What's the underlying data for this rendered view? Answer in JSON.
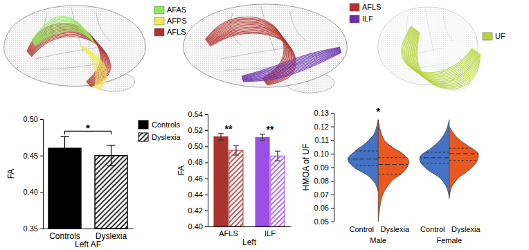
{
  "brain_panels": [
    {
      "tracts": [
        {
          "name": "AFAS",
          "color": "#8fe85f"
        },
        {
          "name": "AFPS",
          "color": "#f0ec55"
        },
        {
          "name": "AFLS",
          "color": "#b5322c"
        }
      ]
    },
    {
      "tracts": [
        {
          "name": "AFLS",
          "color": "#b5322c"
        },
        {
          "name": "ILF",
          "color": "#6a2fb0"
        }
      ]
    },
    {
      "tracts": [
        {
          "name": "UF",
          "color": "#b5d334"
        }
      ]
    }
  ],
  "chart_data": [
    {
      "type": "bar",
      "x_label": "Left AF",
      "y_label": "FA",
      "categories": [
        "Controls",
        "Dyslexia"
      ],
      "series": [
        {
          "name": "Controls",
          "color": "#000000",
          "values": [
            0.46,
            null
          ],
          "errors": [
            0.016,
            null
          ]
        },
        {
          "name": "Dyslexia",
          "color": "#000000",
          "values": [
            null,
            0.45
          ],
          "errors": [
            null,
            0.014
          ]
        }
      ],
      "ylim": [
        0.35,
        0.5
      ],
      "yticks": [
        0.35,
        {
          "value": 0.4,
          "label": "0.40"
        },
        0.45,
        {
          "value": 0.5,
          "label": "0.50"
        }
      ],
      "legend": "upper right",
      "annotations": [
        {
          "text": "*",
          "categories": [
            "Controls",
            "Dyslexia"
          ]
        }
      ]
    },
    {
      "type": "bar",
      "x_label": "Left",
      "y_label": "FA",
      "categories": [
        "AFLS",
        "ILF"
      ],
      "colors": [
        "#a8332f",
        "#9b4fe6"
      ],
      "series": [
        {
          "values": [
            0.512,
            0.511
          ],
          "errors": [
            0.004,
            0.004
          ]
        },
        {
          "values": [
            0.495,
            0.488
          ],
          "errors": [
            0.006,
            0.006
          ]
        }
      ],
      "ylim": [
        0.4,
        0.54
      ],
      "yticks": [
        {
          "value": 0.4,
          "label": "0.40"
        },
        0.42,
        0.44,
        0.46,
        0.48,
        {
          "value": 0.5,
          "label": "0.50"
        },
        0.52,
        0.54
      ],
      "annotations": [
        {
          "text": "**",
          "category": "AFLS"
        },
        {
          "text": "**",
          "category": "ILF"
        }
      ]
    },
    {
      "type": "violin",
      "y_label": "HMOA of UF",
      "categories": [
        "Control",
        "Dyslexia"
      ],
      "colors": [
        "#4472c4",
        "#e8581f"
      ],
      "groups": [
        {
          "name": "Male",
          "violins": [
            {
              "y": [
                0.072,
                0.078,
                0.084,
                0.09,
                0.096,
                0.102,
                0.108,
                0.114,
                0.12,
                0.125
              ],
              "density": [
                0,
                0.1,
                0.35,
                0.8,
                1.0,
                0.75,
                0.4,
                0.15,
                0.05,
                0
              ],
              "quartiles": [
                0.091,
                0.096,
                0.102
              ]
            },
            {
              "y": [
                0.05,
                0.06,
                0.07,
                0.08,
                0.085,
                0.09,
                0.095,
                0.1,
                0.105,
                0.11,
                0.118,
                0.125
              ],
              "density": [
                0,
                0.05,
                0.15,
                0.45,
                0.75,
                0.95,
                1.0,
                0.8,
                0.45,
                0.2,
                0.06,
                0
              ],
              "quartiles": [
                0.085,
                0.092,
                0.097
              ]
            }
          ]
        },
        {
          "name": "Female",
          "violins": [
            {
              "y": [
                0.068,
                0.075,
                0.082,
                0.088,
                0.094,
                0.098,
                0.104,
                0.11,
                0.117,
                0.125
              ],
              "density": [
                0,
                0.08,
                0.3,
                0.7,
                0.95,
                0.95,
                0.6,
                0.3,
                0.1,
                0
              ],
              "quartiles": [
                0.093,
                0.097,
                0.101
              ]
            },
            {
              "y": [
                0.067,
                0.075,
                0.082,
                0.088,
                0.094,
                0.1,
                0.106,
                0.112,
                0.12
              ],
              "density": [
                0,
                0.07,
                0.3,
                0.65,
                0.9,
                0.95,
                0.6,
                0.25,
                0
              ],
              "quartiles": [
                0.095,
                0.1,
                0.104
              ]
            }
          ]
        }
      ],
      "ylim": [
        0.05,
        0.13
      ],
      "yticks": [
        0.05,
        0.06,
        0.07,
        0.08,
        0.09,
        {
          "value": 0.1,
          "label": "0.10"
        },
        0.11,
        0.12,
        0.13
      ],
      "annotations": [
        {
          "text": "*",
          "group": "Male"
        }
      ]
    }
  ]
}
